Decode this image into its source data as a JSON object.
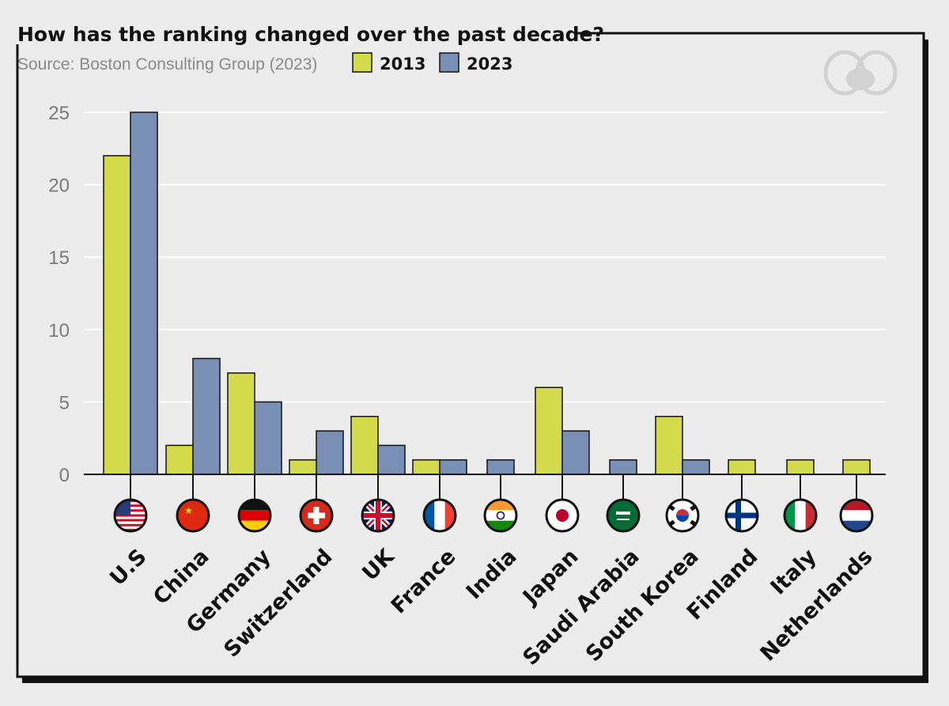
{
  "header": {
    "title": "How has the ranking changed over the past decade?",
    "source": "Source: Boston Consulting Group (2023)"
  },
  "legend": [
    {
      "label": "2013",
      "color": "#d4db4b"
    },
    {
      "label": "2023",
      "color": "#7a8fb5"
    }
  ],
  "colors": {
    "background": "#ececec",
    "series_2013": "#d4db4b",
    "series_2023": "#7a8fb5",
    "gridline": "#ffffff",
    "axis": "#111111"
  },
  "chart_data": {
    "type": "bar",
    "title": "How has the ranking changed over the past decade?",
    "xlabel": "",
    "ylabel": "",
    "ylim": [
      0,
      25
    ],
    "yticks": [
      0,
      5,
      10,
      15,
      20,
      25
    ],
    "grid": true,
    "legend_position": "top-left",
    "categories": [
      "U.S",
      "China",
      "Germany",
      "Switzerland",
      "UK",
      "France",
      "India",
      "Japan",
      "Saudi Arabia",
      "South Korea",
      "Finland",
      "Italy",
      "Netherlands"
    ],
    "flag_icons": [
      "us-flag-icon",
      "china-flag-icon",
      "germany-flag-icon",
      "switzerland-flag-icon",
      "uk-flag-icon",
      "france-flag-icon",
      "india-flag-icon",
      "japan-flag-icon",
      "saudi-arabia-flag-icon",
      "south-korea-flag-icon",
      "finland-flag-icon",
      "italy-flag-icon",
      "netherlands-flag-icon"
    ],
    "series": [
      {
        "name": "2013",
        "color": "#d4db4b",
        "values": [
          22,
          2,
          7,
          1,
          4,
          1,
          0,
          6,
          0,
          4,
          1,
          1,
          1
        ]
      },
      {
        "name": "2023",
        "color": "#7a8fb5",
        "values": [
          25,
          8,
          5,
          3,
          2,
          1,
          1,
          3,
          1,
          1,
          0,
          0,
          0
        ]
      }
    ]
  }
}
